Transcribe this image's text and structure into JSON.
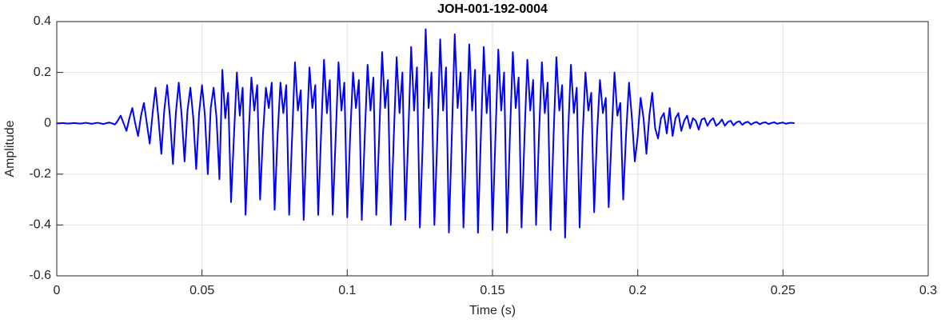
{
  "chart_data": {
    "type": "line",
    "title": "JOH-001-192-0004",
    "x_label": "Time (s)",
    "y_label": "Amplitude",
    "color": "#0000ff",
    "grid": true,
    "xlim": [
      0,
      0.3
    ],
    "xticks": [
      0,
      0.05,
      0.1,
      0.15,
      0.2,
      0.25,
      0.3
    ],
    "ylim": [
      -0.6,
      0.4
    ],
    "yticks": [
      -0.6,
      -0.4,
      -0.2,
      0,
      0.2,
      0.4
    ],
    "x": [
      0,
      0.001,
      0.002,
      0.003,
      0.004,
      0.005,
      0.006,
      0.007,
      0.008,
      0.009,
      0.01,
      0.011,
      0.012,
      0.013,
      0.014,
      0.015,
      0.016,
      0.017,
      0.018,
      0.019,
      0.02,
      0.021,
      0.022,
      0.023,
      0.024,
      0.025,
      0.026,
      0.027,
      0.028,
      0.029,
      0.03,
      0.031,
      0.032,
      0.033,
      0.034,
      0.035,
      0.036,
      0.037,
      0.038,
      0.039,
      0.04,
      0.041,
      0.042,
      0.043,
      0.044,
      0.045,
      0.046,
      0.047,
      0.048,
      0.049,
      0.05,
      0.051,
      0.052,
      0.053,
      0.054,
      0.055,
      0.056,
      0.057,
      0.058,
      0.059,
      0.06,
      0.061,
      0.062,
      0.063,
      0.064,
      0.065,
      0.066,
      0.067,
      0.068,
      0.069,
      0.07,
      0.071,
      0.072,
      0.073,
      0.074,
      0.075,
      0.076,
      0.077,
      0.078,
      0.079,
      0.08,
      0.081,
      0.082,
      0.083,
      0.084,
      0.085,
      0.086,
      0.087,
      0.088,
      0.089,
      0.09,
      0.091,
      0.092,
      0.093,
      0.094,
      0.095,
      0.096,
      0.097,
      0.098,
      0.099,
      0.1,
      0.101,
      0.102,
      0.103,
      0.104,
      0.105,
      0.106,
      0.107,
      0.108,
      0.109,
      0.11,
      0.111,
      0.112,
      0.113,
      0.114,
      0.115,
      0.116,
      0.117,
      0.118,
      0.119,
      0.12,
      0.121,
      0.122,
      0.123,
      0.124,
      0.125,
      0.126,
      0.127,
      0.128,
      0.129,
      0.13,
      0.131,
      0.132,
      0.133,
      0.134,
      0.135,
      0.136,
      0.137,
      0.138,
      0.139,
      0.14,
      0.141,
      0.142,
      0.143,
      0.144,
      0.145,
      0.146,
      0.147,
      0.148,
      0.149,
      0.15,
      0.151,
      0.152,
      0.153,
      0.154,
      0.155,
      0.156,
      0.157,
      0.158,
      0.159,
      0.16,
      0.161,
      0.162,
      0.163,
      0.164,
      0.165,
      0.166,
      0.167,
      0.168,
      0.169,
      0.17,
      0.171,
      0.172,
      0.173,
      0.174,
      0.175,
      0.176,
      0.177,
      0.178,
      0.179,
      0.18,
      0.181,
      0.182,
      0.183,
      0.184,
      0.185,
      0.186,
      0.187,
      0.188,
      0.189,
      0.19,
      0.191,
      0.192,
      0.193,
      0.194,
      0.195,
      0.196,
      0.197,
      0.198,
      0.199,
      0.2,
      0.201,
      0.202,
      0.203,
      0.204,
      0.205,
      0.206,
      0.207,
      0.208,
      0.209,
      0.21,
      0.211,
      0.212,
      0.213,
      0.214,
      0.215,
      0.216,
      0.217,
      0.218,
      0.219,
      0.22,
      0.221,
      0.222,
      0.223,
      0.224,
      0.225,
      0.226,
      0.227,
      0.228,
      0.229,
      0.23,
      0.231,
      0.232,
      0.233,
      0.234,
      0.235,
      0.236,
      0.237,
      0.238,
      0.239,
      0.24,
      0.241,
      0.242,
      0.243,
      0.244,
      0.245,
      0.246,
      0.247,
      0.248,
      0.249,
      0.25,
      0.251,
      0.252,
      0.253,
      0.254
    ],
    "values": [
      0,
      0,
      0.001,
      0,
      -0.001,
      0,
      0.001,
      0,
      -0.001,
      0,
      0.002,
      0,
      -0.002,
      0,
      0.002,
      0,
      -0.003,
      0,
      0.003,
      0,
      -0.005,
      0.01,
      0.03,
      0,
      -0.03,
      0.02,
      0.06,
      0,
      -0.05,
      0.03,
      0.08,
      0,
      -0.08,
      0.04,
      0.14,
      0.02,
      -0.12,
      0.05,
      0.15,
      0.02,
      -0.16,
      0.04,
      0.16,
      0.03,
      -0.15,
      0.05,
      0.14,
      0.02,
      -0.18,
      0.04,
      0.15,
      0.03,
      -0.2,
      0.06,
      0.14,
      0.02,
      -0.22,
      0.21,
      0.02,
      0.12,
      -0.31,
      -0.05,
      0.2,
      0.03,
      0.14,
      -0.36,
      -0.06,
      0.18,
      0.05,
      0.15,
      -0.3,
      -0.04,
      0.14,
      0.06,
      0.16,
      -0.34,
      -0.05,
      0.16,
      0.04,
      0.15,
      -0.36,
      -0.06,
      0.24,
      0.05,
      0.13,
      -0.38,
      -0.05,
      0.22,
      0.06,
      0.15,
      -0.36,
      -0.04,
      0.25,
      0.04,
      0.17,
      -0.36,
      -0.06,
      0.24,
      0.05,
      0.16,
      -0.37,
      -0.05,
      0.2,
      0.06,
      0.17,
      -0.38,
      -0.06,
      0.23,
      0.05,
      0.18,
      -0.36,
      -0.05,
      0.28,
      0.06,
      0.17,
      -0.4,
      -0.06,
      0.26,
      0.04,
      0.2,
      -0.38,
      -0.05,
      0.3,
      0.05,
      0.22,
      -0.41,
      -0.07,
      0.37,
      0.06,
      0.2,
      -0.4,
      -0.06,
      0.33,
      0.05,
      0.22,
      -0.43,
      -0.05,
      0.35,
      0.06,
      0.2,
      -0.41,
      -0.06,
      0.31,
      0.05,
      0.21,
      -0.43,
      -0.05,
      0.3,
      0.04,
      0.19,
      -0.42,
      -0.06,
      0.29,
      0.05,
      0.2,
      -0.43,
      -0.05,
      0.28,
      0.06,
      0.18,
      -0.41,
      -0.06,
      0.25,
      0.05,
      0.17,
      -0.4,
      -0.05,
      0.24,
      0.04,
      0.16,
      -0.42,
      -0.06,
      0.26,
      0.05,
      0.15,
      -0.45,
      -0.05,
      0.23,
      0.04,
      0.14,
      -0.41,
      -0.06,
      0.2,
      0.05,
      0.12,
      -0.35,
      -0.04,
      0.17,
      0.04,
      0.1,
      -0.33,
      -0.05,
      0.2,
      0.03,
      0.08,
      -0.3,
      -0.04,
      0.16,
      0.02,
      -0.15,
      -0.05,
      0.1,
      0.02,
      -0.12,
      0.03,
      0.12,
      -0.02,
      -0.06,
      0.02,
      0.04,
      -0.04,
      0.06,
      -0.05,
      0.02,
      0.04,
      -0.03,
      0.01,
      0.03,
      -0.02,
      0.02,
      0.01,
      -0.025,
      0.015,
      0.02,
      -0.01,
      0.01,
      0.02,
      -0.01,
      0,
      0.015,
      -0.01,
      0.005,
      0.01,
      -0.008,
      0.004,
      0.008,
      -0.006,
      0.003,
      0.006,
      -0.005,
      0.002,
      0.005,
      -0.004,
      0.002,
      0.004,
      -0.003,
      0.001,
      0.004,
      -0.002,
      0.001,
      0.003,
      -0.002,
      0.001,
      0.002,
      0
    ]
  }
}
